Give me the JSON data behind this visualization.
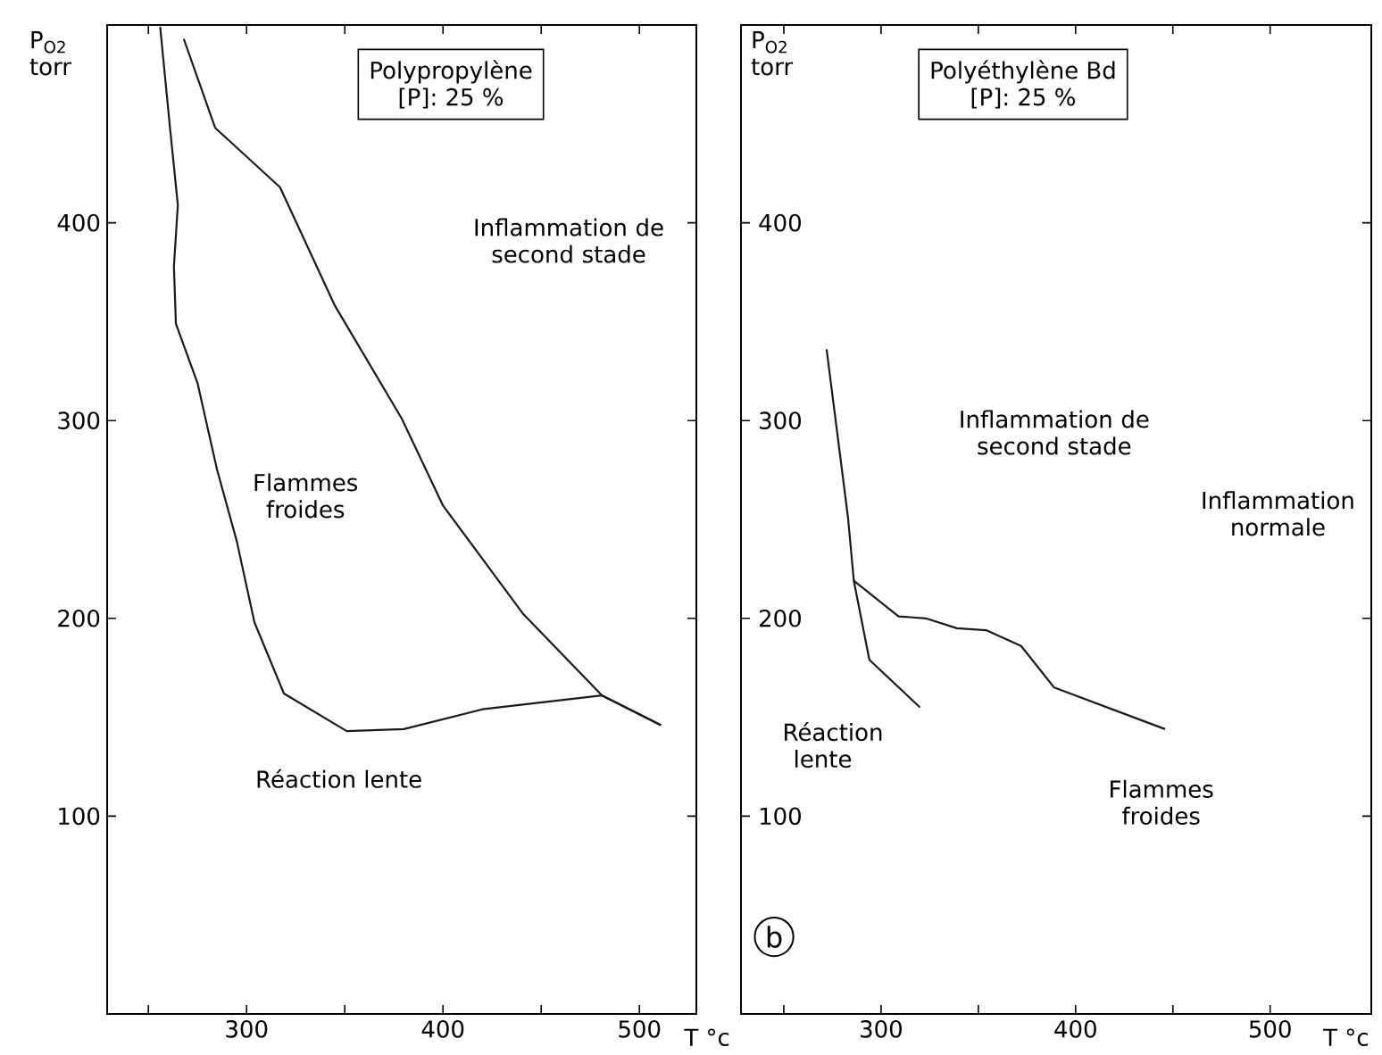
{
  "chart_data": [
    {
      "type": "line",
      "title": "Polypropylène",
      "subtitle": "[P]: 25 %",
      "xlabel": "T °c",
      "ylabel": "P$_{O2}$ torr",
      "xlim": [
        229,
        529
      ],
      "ylim": [
        0,
        500
      ],
      "xticks": [
        {
          "value": 250,
          "label": null
        },
        300,
        {
          "value": 350,
          "label": null
        },
        400,
        {
          "value": 450,
          "label": null
        },
        500
      ],
      "yticks": [
        100,
        200,
        300,
        400
      ],
      "annotations": [
        "Inflammation de second stade",
        "Flammes froides",
        "Réaction lente"
      ],
      "series": [
        {
          "color": "#1a1a1a",
          "x": [
            256,
            261,
            265,
            263,
            264,
            275,
            285,
            295,
            304,
            319,
            351,
            380,
            420,
            481,
            511
          ],
          "values": [
            499,
            448,
            409,
            378,
            349,
            319,
            275,
            239,
            198,
            162,
            143,
            144,
            154,
            161,
            146
          ]
        },
        {
          "color": "#1a1a1a",
          "x": [
            268,
            284,
            317,
            345,
            379,
            400,
            441,
            481,
            511
          ],
          "values": [
            493,
            448,
            418,
            358,
            301,
            257,
            202,
            161,
            146
          ]
        }
      ]
    },
    {
      "type": "line",
      "title": "Polyéthylène Bd",
      "subtitle": "[P]: 25 %",
      "xlabel": "T °c",
      "ylabel": "P$_{O2}$ torr",
      "xlim": [
        228,
        552
      ],
      "ylim": [
        0,
        500
      ],
      "xticks": [
        {
          "value": 250,
          "label": null
        },
        300,
        {
          "value": 350,
          "label": null
        },
        400,
        {
          "value": 450,
          "label": null
        },
        500
      ],
      "yticks": [
        100,
        200,
        300,
        400
      ],
      "annotations": [
        "Inflammation de second stade",
        "Inflammation normale",
        "Réaction lente",
        "Flammes froides",
        "b"
      ],
      "series": [
        {
          "color": "#1a1a1a",
          "x": [
            272,
            283,
            286,
            294,
            320
          ],
          "values": [
            336,
            251,
            219,
            179,
            155
          ]
        },
        {
          "color": "#1a1a1a",
          "x": [
            286,
            309,
            323,
            339,
            354,
            372,
            389,
            446
          ],
          "values": [
            219,
            201,
            200,
            195,
            194,
            186,
            165,
            144
          ]
        }
      ]
    }
  ]
}
